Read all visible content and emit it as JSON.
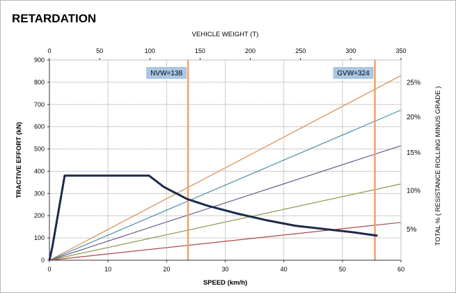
{
  "page": {
    "title": "RETARDATION"
  },
  "chart_data": {
    "type": "line",
    "title": "RETARDATION",
    "xlabel": "SPEED (km/h)",
    "ylabel": "TRACTIVE EFFORT (kN)",
    "top_xlabel": "VEHICLE WEIGHT (T)",
    "right_ylabel": "TOTAL %  ( RESISTANCE ROLLING MINUS GRADE )",
    "xlim": [
      0,
      60
    ],
    "ylim": [
      0,
      900
    ],
    "top_xlim": [
      0,
      350
    ],
    "x_ticks": [
      0,
      10,
      20,
      30,
      40,
      50,
      60
    ],
    "y_ticks": [
      0,
      100,
      200,
      300,
      400,
      500,
      600,
      700,
      800,
      900
    ],
    "top_x_ticks": [
      0,
      50,
      100,
      150,
      200,
      250,
      300,
      350
    ],
    "grid": true,
    "effort_curve": {
      "color": "#1b2a4a",
      "points": [
        [
          0,
          0
        ],
        [
          0.5,
          60
        ],
        [
          2.6,
          380
        ],
        [
          17,
          380
        ],
        [
          19.5,
          330
        ],
        [
          23.5,
          275
        ],
        [
          27,
          245
        ],
        [
          32,
          210
        ],
        [
          37,
          180
        ],
        [
          42,
          155
        ],
        [
          47,
          140
        ],
        [
          52,
          125
        ],
        [
          56,
          110
        ]
      ]
    },
    "grade_lines": [
      {
        "label": "5%",
        "color": "#a84a4a",
        "end_value": 170
      },
      {
        "label": "10%",
        "color": "#8a9a4a",
        "end_value": 343
      },
      {
        "label": "15%",
        "color": "#6a5a8c",
        "end_value": 515
      },
      {
        "label": "20%",
        "color": "#4a8fa6",
        "end_value": 675
      },
      {
        "label": "25%",
        "color": "#d98b4f",
        "end_value": 830
      }
    ],
    "weight_markers": [
      {
        "label": "NVW=138",
        "weight": 138,
        "color": "#f0a06a",
        "box_color": "#a9c7e3"
      },
      {
        "label": "GVW=324",
        "weight": 324,
        "color": "#f0a06a",
        "box_color": "#a9c7e3"
      }
    ]
  }
}
